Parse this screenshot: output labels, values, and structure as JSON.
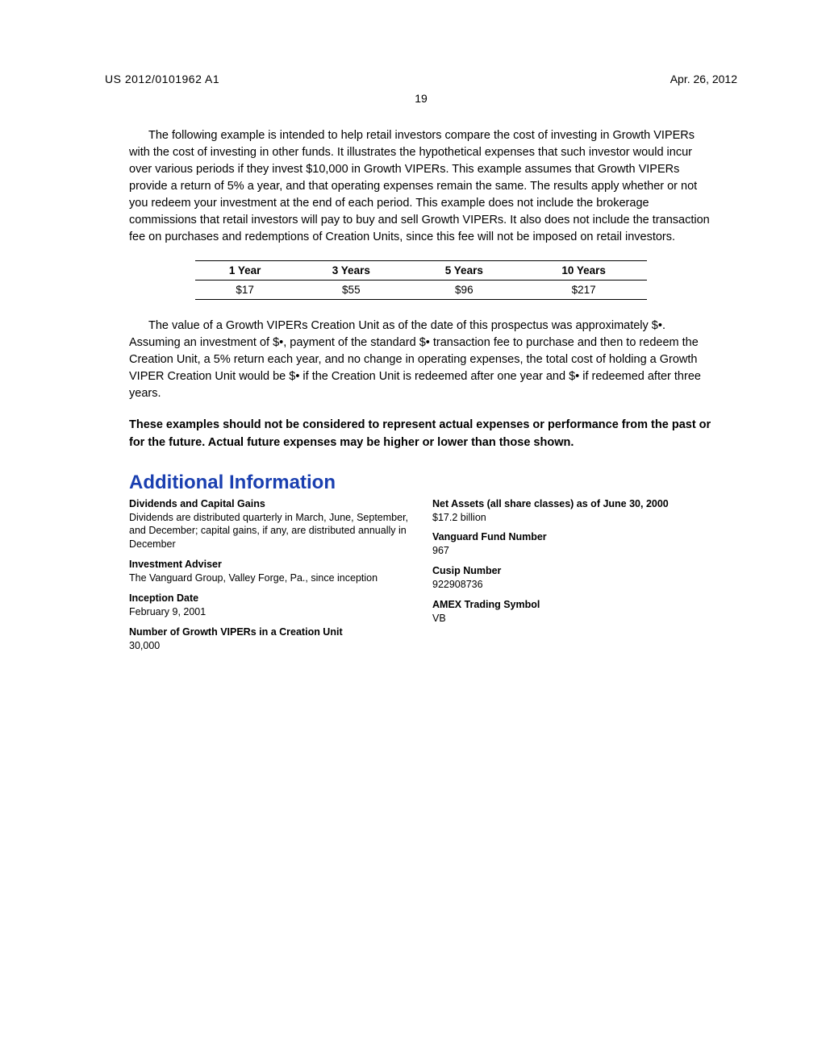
{
  "header": {
    "doc_id": "US 2012/0101962 A1",
    "date": "Apr. 26, 2012",
    "page_number": "19"
  },
  "intro_para": "The following example is intended to help retail investors compare the cost of investing in Growth VIPERs with the cost of investing in other funds. It illustrates the hypothetical expenses that such investor would incur over various periods if they invest $10,000 in Growth VIPERs. This example assumes that Growth VIPERs provide a return of 5% a year, and that operating expenses remain the same. The results apply whether or not you redeem your investment at the end of each period. This example does not include the brokerage commissions that retail investors will pay to buy and sell Growth VIPERs. It also does not include the transaction fee on purchases and redemptions of Creation Units, since this fee will not be imposed on retail investors.",
  "cost_table": {
    "headers": [
      "1 Year",
      "3 Years",
      "5 Years",
      "10 Years"
    ],
    "row": [
      "$17",
      "$55",
      "$96",
      "$217"
    ]
  },
  "value_para": "The value of a Growth VIPERs Creation Unit as of the date of this prospectus was approximately $•. Assuming an investment of $•, payment of the standard $• transaction fee to purchase and then to redeem the Creation Unit, a 5% return each year, and no change in operating expenses, the total cost of holding a Growth VIPER Creation Unit would be $• if the Creation Unit is redeemed after one year and $• if redeemed after three years.",
  "bold_para": "These examples should not be considered to represent actual expenses or performance from the past or for the future. Actual future expenses may be higher or lower than those shown.",
  "section_heading": "Additional Information",
  "info_left": [
    {
      "label": "Dividends and Capital Gains",
      "value": "Dividends are distributed quarterly in March, June, September, and December; capital gains, if any, are distributed annually in December"
    },
    {
      "label": "Investment Adviser",
      "value": "The Vanguard Group, Valley Forge, Pa., since inception"
    },
    {
      "label": "Inception Date",
      "value": "February 9, 2001"
    },
    {
      "label": "Number of Growth VIPERs in a Creation Unit",
      "value": "30,000"
    }
  ],
  "info_right": [
    {
      "label": "Net Assets (all share classes) as of June 30, 2000",
      "value": "$17.2 billion"
    },
    {
      "label": "Vanguard Fund Number",
      "value": "967"
    },
    {
      "label": "Cusip Number",
      "value": "922908736"
    },
    {
      "label": "AMEX Trading Symbol",
      "value": "VB"
    }
  ],
  "colors": {
    "heading_blue": "#1a3fb0",
    "text": "#000000",
    "background": "#ffffff"
  }
}
